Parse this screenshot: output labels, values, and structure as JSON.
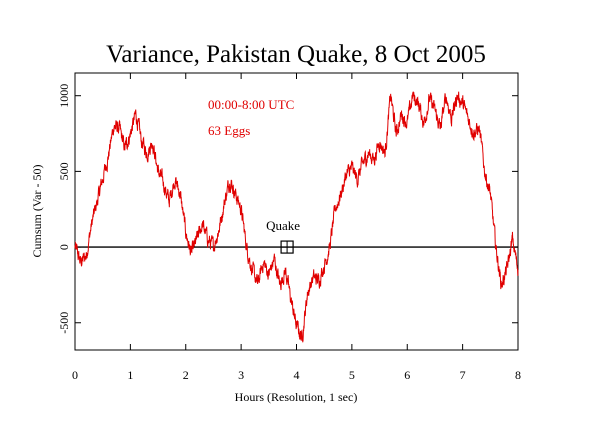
{
  "chart_data": {
    "type": "line",
    "title": "Variance, Pakistan Quake, 8 Oct 2005",
    "xlabel": "Hours (Resolution, 1 sec)",
    "ylabel": "Cumsum (Var - 50)",
    "xlim": [
      0,
      8
    ],
    "ylim": [
      -680,
      1150
    ],
    "xticks": [
      0,
      1,
      2,
      3,
      4,
      5,
      6,
      7,
      8
    ],
    "yticks": [
      -500,
      0,
      500,
      1000
    ],
    "xtick_labels": [
      "0",
      "1",
      "2",
      "3",
      "4",
      "5",
      "6",
      "7",
      "8"
    ],
    "ytick_labels": [
      "-500",
      "0",
      "500",
      "1000"
    ],
    "grid": false,
    "annotations": {
      "time_range": "00:00-8:00 UTC",
      "eggs": "63 Eggs",
      "event_label": "Quake",
      "event_hour": 3.83,
      "event_value": 0
    },
    "colors": {
      "series": "#e00000",
      "axes": "#000000"
    },
    "series": [
      {
        "x": [
          0,
          0.1,
          0.2,
          0.3,
          0.4,
          0.5,
          0.6,
          0.7,
          0.8,
          0.9,
          1.0,
          1.1,
          1.2,
          1.3,
          1.4,
          1.5,
          1.6,
          1.7,
          1.8,
          1.9,
          2.0,
          2.1,
          2.2,
          2.3,
          2.4,
          2.5,
          2.6,
          2.7,
          2.8,
          2.9,
          3.0,
          3.1,
          3.2,
          3.3,
          3.4,
          3.5,
          3.6,
          3.7,
          3.8,
          3.9,
          4.0,
          4.1,
          4.2,
          4.3,
          4.4,
          4.5,
          4.6,
          4.7,
          4.8,
          4.9,
          5.0,
          5.1,
          5.2,
          5.3,
          5.4,
          5.5,
          5.6,
          5.7,
          5.8,
          5.9,
          6.0,
          6.1,
          6.2,
          6.3,
          6.4,
          6.5,
          6.6,
          6.7,
          6.8,
          6.9,
          7.0,
          7.1,
          7.2,
          7.3,
          7.4,
          7.5,
          7.6,
          7.7,
          7.8,
          7.9,
          8.0
        ],
        "values": [
          0,
          -100,
          -60,
          150,
          300,
          450,
          600,
          800,
          780,
          650,
          750,
          880,
          700,
          620,
          700,
          500,
          420,
          300,
          450,
          350,
          100,
          -50,
          50,
          150,
          50,
          0,
          120,
          300,
          450,
          350,
          250,
          0,
          -150,
          -250,
          -100,
          -180,
          -80,
          -250,
          -150,
          -350,
          -520,
          -600,
          -300,
          -200,
          -220,
          -120,
          0,
          250,
          350,
          480,
          520,
          450,
          550,
          620,
          580,
          700,
          620,
          1000,
          750,
          880,
          820,
          1000,
          950,
          820,
          980,
          900,
          780,
          1000,
          850,
          1000,
          950,
          850,
          760,
          780,
          500,
          350,
          0,
          -250,
          -150,
          50,
          -150
        ]
      }
    ]
  }
}
